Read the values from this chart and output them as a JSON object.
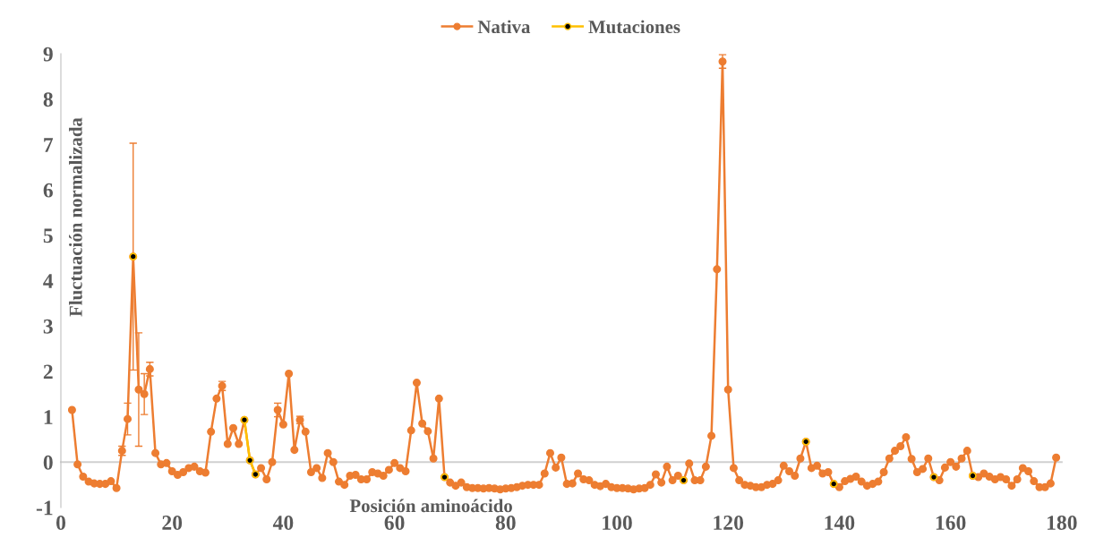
{
  "chart_data": {
    "type": "line",
    "xlabel": "Posición aminoácido",
    "ylabel": "Fluctuación normalizada",
    "x": [
      2,
      3,
      4,
      5,
      6,
      7,
      8,
      9,
      10,
      11,
      12,
      13,
      14,
      15,
      16,
      17,
      18,
      19,
      20,
      21,
      22,
      23,
      24,
      25,
      26,
      27,
      28,
      29,
      30,
      31,
      32,
      33,
      34,
      35,
      36,
      37,
      38,
      39,
      40,
      41,
      42,
      43,
      44,
      45,
      46,
      47,
      48,
      49,
      50,
      51,
      52,
      53,
      54,
      55,
      56,
      57,
      58,
      59,
      60,
      61,
      62,
      63,
      64,
      65,
      66,
      67,
      68,
      69,
      70,
      71,
      72,
      73,
      74,
      75,
      76,
      77,
      78,
      79,
      80,
      81,
      82,
      83,
      84,
      85,
      86,
      87,
      88,
      89,
      90,
      91,
      92,
      93,
      94,
      95,
      96,
      97,
      98,
      99,
      100,
      101,
      102,
      103,
      104,
      105,
      106,
      107,
      108,
      109,
      110,
      111,
      112,
      113,
      114,
      115,
      116,
      117,
      118,
      119,
      120,
      121,
      122,
      123,
      124,
      125,
      126,
      127,
      128,
      129,
      130,
      131,
      132,
      133,
      134,
      135,
      136,
      137,
      138,
      139,
      140,
      141,
      142,
      143,
      144,
      145,
      146,
      147,
      148,
      149,
      150,
      151,
      152,
      153,
      154,
      155,
      156,
      157,
      158,
      159,
      160,
      161,
      162,
      163,
      164,
      165,
      166,
      167,
      168,
      169,
      170,
      171,
      172,
      173,
      174,
      175,
      176,
      177,
      178,
      179
    ],
    "series": [
      {
        "name": "Nativa",
        "color": "#ed7d31",
        "values": [
          1.15,
          -0.05,
          -0.32,
          -0.43,
          -0.47,
          -0.48,
          -0.48,
          -0.42,
          -0.57,
          0.25,
          0.95,
          4.53,
          1.6,
          1.5,
          2.05,
          0.2,
          -0.05,
          -0.02,
          -0.2,
          -0.28,
          -0.22,
          -0.13,
          -0.1,
          -0.2,
          -0.23,
          0.67,
          1.4,
          1.68,
          0.4,
          0.75,
          0.4,
          0.93,
          0.04,
          -0.27,
          -0.13,
          -0.38,
          0.0,
          1.15,
          0.83,
          1.95,
          0.27,
          0.93,
          0.67,
          -0.22,
          -0.13,
          -0.35,
          0.2,
          0.0,
          -0.43,
          -0.5,
          -0.3,
          -0.28,
          -0.38,
          -0.38,
          -0.22,
          -0.25,
          -0.3,
          -0.17,
          -0.02,
          -0.13,
          -0.2,
          0.7,
          1.75,
          0.85,
          0.68,
          0.08,
          1.4,
          -0.33,
          -0.45,
          -0.52,
          -0.45,
          -0.55,
          -0.57,
          -0.57,
          -0.58,
          -0.57,
          -0.58,
          -0.6,
          -0.58,
          -0.57,
          -0.55,
          -0.52,
          -0.5,
          -0.5,
          -0.5,
          -0.25,
          0.2,
          -0.12,
          0.1,
          -0.48,
          -0.47,
          -0.25,
          -0.38,
          -0.4,
          -0.5,
          -0.53,
          -0.48,
          -0.55,
          -0.57,
          -0.57,
          -0.58,
          -0.6,
          -0.58,
          -0.57,
          -0.5,
          -0.27,
          -0.45,
          -0.1,
          -0.4,
          -0.3,
          -0.4,
          -0.03,
          -0.4,
          -0.4,
          -0.1,
          0.58,
          4.25,
          8.83,
          1.6,
          -0.13,
          -0.4,
          -0.5,
          -0.52,
          -0.55,
          -0.55,
          -0.5,
          -0.48,
          -0.4,
          -0.08,
          -0.2,
          -0.3,
          0.08,
          0.45,
          -0.13,
          -0.08,
          -0.25,
          -0.22,
          -0.48,
          -0.55,
          -0.42,
          -0.37,
          -0.32,
          -0.43,
          -0.52,
          -0.48,
          -0.43,
          -0.22,
          0.08,
          0.25,
          0.35,
          0.55,
          0.07,
          -0.22,
          -0.15,
          0.08,
          -0.33,
          -0.4,
          -0.12,
          0.0,
          -0.1,
          0.08,
          0.25,
          -0.3,
          -0.33,
          -0.25,
          -0.32,
          -0.38,
          -0.33,
          -0.38,
          -0.52,
          -0.38,
          -0.13,
          -0.2,
          -0.42,
          -0.55,
          -0.55,
          -0.47,
          0.1
        ],
        "errors": [
          null,
          null,
          null,
          null,
          null,
          null,
          null,
          null,
          null,
          0.1,
          0.35,
          2.5,
          1.25,
          0.45,
          0.15,
          null,
          null,
          null,
          null,
          null,
          null,
          null,
          null,
          null,
          null,
          null,
          null,
          0.1,
          null,
          null,
          null,
          null,
          null,
          null,
          null,
          null,
          null,
          0.15,
          null,
          null,
          null,
          0.08,
          null,
          null,
          null,
          null,
          null,
          null,
          null,
          null,
          null,
          null,
          null,
          null,
          null,
          null,
          null,
          null,
          null,
          null,
          null,
          null,
          null,
          null,
          null,
          null,
          null,
          null,
          null,
          null,
          null,
          null,
          null,
          null,
          null,
          null,
          null,
          null,
          null,
          null,
          null,
          null,
          null,
          null,
          null,
          null,
          null,
          null,
          null,
          null,
          null,
          null,
          null,
          null,
          null,
          null,
          null,
          null,
          null,
          null,
          null,
          null,
          null,
          null,
          null,
          null,
          null,
          null,
          null,
          null,
          null,
          null,
          null,
          null,
          null,
          null,
          null,
          0.15,
          null,
          null,
          null,
          null,
          null,
          null,
          null,
          null,
          null,
          null,
          null,
          null,
          null,
          null,
          null,
          null,
          null,
          null,
          null,
          null,
          null,
          null,
          null,
          null,
          null,
          null,
          null,
          null,
          null,
          null,
          null,
          null,
          null,
          null,
          null,
          null,
          null,
          null,
          null,
          null,
          null,
          null,
          null,
          null,
          null,
          null,
          null,
          null,
          null,
          null,
          null,
          null,
          null,
          null,
          null,
          null,
          null,
          null,
          null,
          null
        ]
      },
      {
        "name": "Mutaciones",
        "color": "#ffc000",
        "values": [
          null,
          null,
          null,
          null,
          null,
          null,
          null,
          null,
          null,
          null,
          null,
          4.53,
          null,
          null,
          null,
          null,
          null,
          null,
          null,
          null,
          null,
          null,
          null,
          null,
          null,
          null,
          null,
          null,
          null,
          null,
          null,
          0.93,
          0.04,
          -0.27,
          null,
          null,
          null,
          null,
          null,
          null,
          null,
          null,
          null,
          null,
          null,
          null,
          null,
          null,
          null,
          null,
          null,
          null,
          null,
          null,
          null,
          null,
          null,
          null,
          null,
          null,
          null,
          null,
          null,
          null,
          null,
          null,
          null,
          -0.33,
          null,
          null,
          null,
          null,
          null,
          null,
          null,
          null,
          null,
          null,
          null,
          null,
          null,
          null,
          null,
          null,
          null,
          null,
          null,
          null,
          null,
          null,
          null,
          null,
          null,
          null,
          null,
          null,
          null,
          null,
          null,
          null,
          null,
          null,
          null,
          null,
          null,
          null,
          null,
          null,
          null,
          null,
          -0.4,
          null,
          null,
          null,
          null,
          null,
          null,
          null,
          null,
          null,
          null,
          null,
          null,
          null,
          null,
          null,
          null,
          null,
          null,
          null,
          null,
          null,
          0.45,
          null,
          null,
          null,
          null,
          -0.48,
          null,
          null,
          null,
          null,
          null,
          null,
          null,
          null,
          null,
          null,
          null,
          null,
          null,
          null,
          null,
          null,
          null,
          -0.33,
          null,
          null,
          null,
          null,
          null,
          null,
          -0.3,
          null,
          null,
          null,
          null,
          null,
          null,
          null,
          null,
          null,
          null,
          null,
          null,
          null,
          null,
          null
        ]
      }
    ],
    "xlim": [
      0,
      180
    ],
    "xticks": [
      0,
      20,
      40,
      60,
      80,
      100,
      120,
      140,
      160,
      180
    ],
    "ylim": [
      -1,
      9
    ],
    "yticks": [
      -1,
      0,
      1,
      2,
      3,
      4,
      5,
      6,
      7,
      8,
      9
    ],
    "grid": false,
    "legend": "top",
    "marker": "circle",
    "line_style": "solid"
  }
}
